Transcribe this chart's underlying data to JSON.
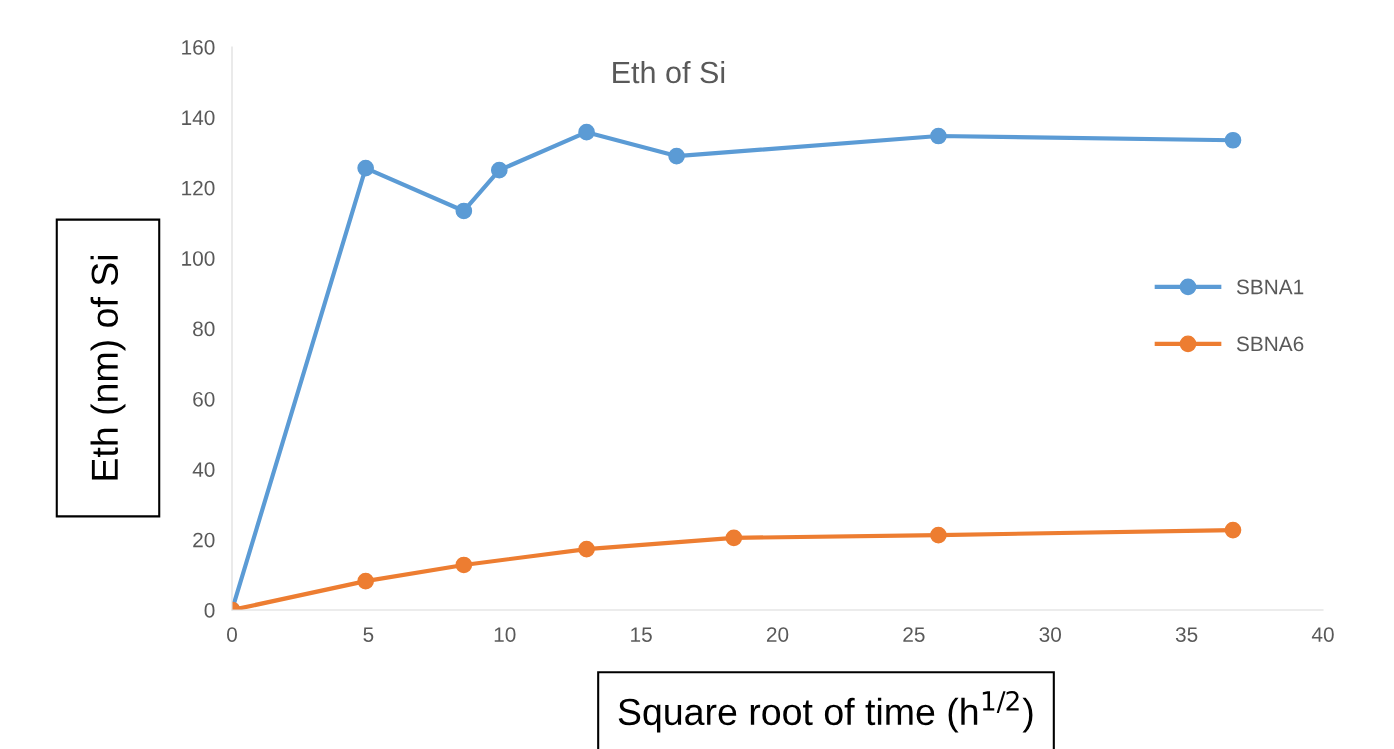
{
  "chart_data": {
    "type": "line",
    "title": "Eth of Si",
    "xlabel": "Square root of time (h$^{1/2}$)",
    "ylabel": "Eth (nm) of Si",
    "xlim": [
      0,
      40
    ],
    "xticks": [
      0,
      5,
      10,
      15,
      20,
      25,
      30,
      35,
      40
    ],
    "ylim": [
      0,
      160
    ],
    "yticks": [
      0,
      20,
      40,
      60,
      80,
      100,
      120,
      140,
      160
    ],
    "grid": false,
    "legend": "right",
    "marker": "circle",
    "line_style": "solid",
    "series": [
      {
        "name": "SBNA1",
        "color": "#5b9bd5",
        "x": [
          0,
          4.9,
          8.5,
          9.8,
          13,
          16.3,
          25.9,
          36.7
        ],
        "values": [
          0,
          125.6,
          113.4,
          125,
          135.8,
          129,
          134.7,
          133.5
        ]
      },
      {
        "name": "SBNA6",
        "color": "#ed7d31",
        "x": [
          0,
          4.9,
          8.5,
          13,
          18.4,
          25.9,
          36.7
        ],
        "values": [
          0,
          8.2,
          12.8,
          17.3,
          20.5,
          21.3,
          22.7
        ]
      }
    ]
  }
}
